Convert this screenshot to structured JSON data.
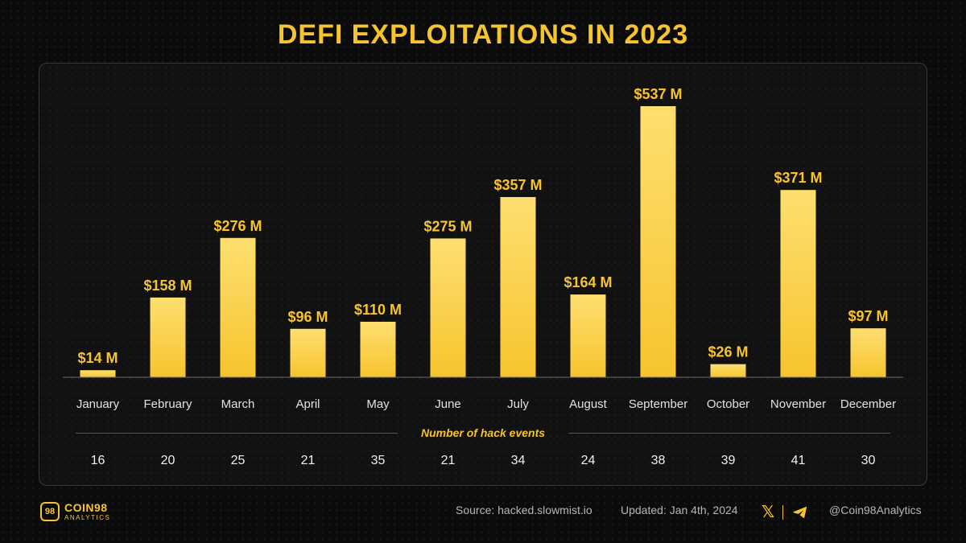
{
  "title": "DEFI EXPLOITATIONS IN 2023",
  "chart_data": {
    "type": "bar",
    "categories": [
      "January",
      "February",
      "March",
      "April",
      "May",
      "June",
      "July",
      "August",
      "September",
      "October",
      "November",
      "December"
    ],
    "values": [
      14,
      158,
      276,
      96,
      110,
      275,
      357,
      164,
      537,
      26,
      371,
      97
    ],
    "value_labels": [
      "$14 M",
      "$158 M",
      "$276 M",
      "$96 M",
      "$110 M",
      "$275 M",
      "$357 M",
      "$164 M",
      "$537 M",
      "$26 M",
      "$371 M",
      "$97 M"
    ],
    "ylim": [
      0,
      537
    ],
    "grid": false,
    "legend": "none",
    "bar_color": "#f7c42e",
    "table": {
      "label": "Number of hack events",
      "values": [
        "16",
        "20",
        "25",
        "21",
        "35",
        "21",
        "34",
        "24",
        "38",
        "39",
        "41",
        "30"
      ]
    }
  },
  "footer": {
    "brand": "COIN98",
    "brand_sub": "ANALYTICS",
    "brand_mark": "98",
    "source": "Source: hacked.slowmist.io",
    "updated": "Updated: Jan 4th, 2024",
    "handle": "@Coin98Analytics",
    "icons": [
      "x-icon",
      "telegram-icon"
    ]
  },
  "colors": {
    "accent": "#f7c42e",
    "background": "#0b0b0b"
  }
}
